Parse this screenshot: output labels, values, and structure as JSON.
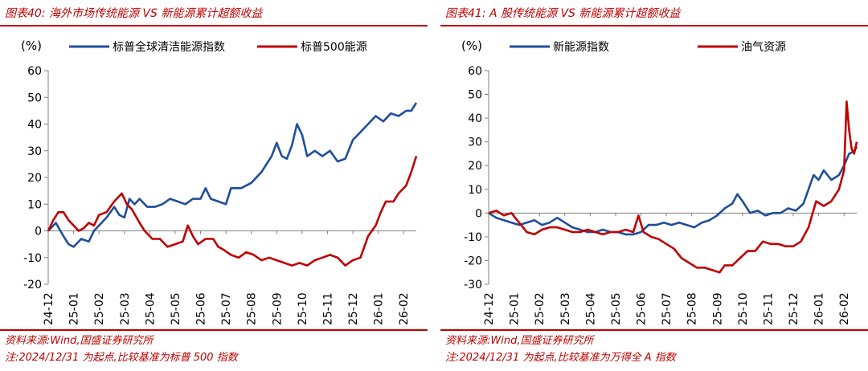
{
  "panels": [
    {
      "title": "图表40:  海外市场传统能源 VS 新能源累计超额收益",
      "source": "资料来源:Wind,国盛证券研究所",
      "note": "注:2024/12/31 为起点,比较基准为标普 500 指数"
    },
    {
      "title": "图表41:  A 股传统能源 VS 新能源累计超额收益",
      "source": "资料来源:Wind,国盛证券研究所",
      "note": "注:2024/12/31 为起点,比较基准为万得全 A 指数"
    }
  ],
  "chart_data": [
    {
      "type": "line",
      "ylabel": "(%)",
      "ylim": [
        -20,
        60
      ],
      "yticks": [
        -20,
        -10,
        0,
        10,
        20,
        30,
        40,
        50,
        60
      ],
      "categories": [
        "24-12",
        "25-01",
        "25-02",
        "25-03",
        "25-04",
        "25-05",
        "25-06",
        "25-07",
        "25-08",
        "25-09",
        "25-10",
        "25-11",
        "25-12",
        "26-01",
        "26-02"
      ],
      "x_end": 14.5,
      "legend": "top",
      "series": [
        {
          "name": "标普全球清洁能源指数",
          "color": "#1f4e9c",
          "points": [
            [
              0,
              0
            ],
            [
              0.3,
              3
            ],
            [
              0.6,
              -2
            ],
            [
              0.8,
              -5
            ],
            [
              1,
              -6
            ],
            [
              1.3,
              -3
            ],
            [
              1.6,
              -4
            ],
            [
              1.8,
              0
            ],
            [
              2,
              2
            ],
            [
              2.3,
              5
            ],
            [
              2.6,
              9
            ],
            [
              2.8,
              6
            ],
            [
              3,
              5
            ],
            [
              3.2,
              12
            ],
            [
              3.4,
              10
            ],
            [
              3.6,
              12
            ],
            [
              3.9,
              9
            ],
            [
              4.2,
              9
            ],
            [
              4.5,
              10
            ],
            [
              4.8,
              12
            ],
            [
              5.1,
              11
            ],
            [
              5.4,
              10
            ],
            [
              5.7,
              12
            ],
            [
              6,
              12
            ],
            [
              6.2,
              16
            ],
            [
              6.4,
              12
            ],
            [
              6.7,
              11
            ],
            [
              7,
              10
            ],
            [
              7.2,
              16
            ],
            [
              7.6,
              16
            ],
            [
              8,
              18
            ],
            [
              8.4,
              22
            ],
            [
              8.8,
              28
            ],
            [
              9,
              33
            ],
            [
              9.2,
              28
            ],
            [
              9.4,
              27
            ],
            [
              9.6,
              32
            ],
            [
              9.8,
              40
            ],
            [
              10,
              36
            ],
            [
              10.2,
              28
            ],
            [
              10.5,
              30
            ],
            [
              10.8,
              28
            ],
            [
              11.1,
              30
            ],
            [
              11.4,
              26
            ],
            [
              11.7,
              27
            ],
            [
              12,
              34
            ],
            [
              12.3,
              37
            ],
            [
              12.6,
              40
            ],
            [
              12.9,
              43
            ],
            [
              13.2,
              41
            ],
            [
              13.5,
              44
            ],
            [
              13.8,
              43
            ],
            [
              14.1,
              45
            ],
            [
              14.3,
              45
            ],
            [
              14.5,
              48
            ]
          ]
        },
        {
          "name": "标普500能源",
          "color": "#c00000",
          "points": [
            [
              0,
              0
            ],
            [
              0.2,
              4
            ],
            [
              0.4,
              7
            ],
            [
              0.6,
              7
            ],
            [
              0.8,
              4
            ],
            [
              1,
              2
            ],
            [
              1.2,
              0
            ],
            [
              1.4,
              1
            ],
            [
              1.6,
              3
            ],
            [
              1.8,
              2
            ],
            [
              2,
              6
            ],
            [
              2.3,
              7
            ],
            [
              2.6,
              11
            ],
            [
              2.9,
              14
            ],
            [
              3.1,
              10
            ],
            [
              3.3,
              8
            ],
            [
              3.6,
              3
            ],
            [
              3.8,
              0
            ],
            [
              4.1,
              -3
            ],
            [
              4.4,
              -3
            ],
            [
              4.7,
              -6
            ],
            [
              5,
              -5
            ],
            [
              5.3,
              -4
            ],
            [
              5.5,
              2
            ],
            [
              5.7,
              -2
            ],
            [
              5.9,
              -5
            ],
            [
              6.2,
              -3
            ],
            [
              6.5,
              -3
            ],
            [
              6.7,
              -6
            ],
            [
              6.9,
              -7
            ],
            [
              7.2,
              -9
            ],
            [
              7.5,
              -10
            ],
            [
              7.8,
              -8
            ],
            [
              8.1,
              -9
            ],
            [
              8.4,
              -11
            ],
            [
              8.7,
              -10
            ],
            [
              9,
              -11
            ],
            [
              9.3,
              -12
            ],
            [
              9.6,
              -13
            ],
            [
              9.9,
              -12
            ],
            [
              10.2,
              -13
            ],
            [
              10.5,
              -11
            ],
            [
              10.8,
              -10
            ],
            [
              11.1,
              -9
            ],
            [
              11.4,
              -10
            ],
            [
              11.7,
              -13
            ],
            [
              12,
              -11
            ],
            [
              12.3,
              -10
            ],
            [
              12.6,
              -2
            ],
            [
              12.9,
              2
            ],
            [
              13.1,
              7
            ],
            [
              13.3,
              11
            ],
            [
              13.6,
              11
            ],
            [
              13.8,
              14
            ],
            [
              14.1,
              17
            ],
            [
              14.3,
              22
            ],
            [
              14.5,
              28
            ]
          ]
        }
      ]
    },
    {
      "type": "line",
      "ylabel": "(%)",
      "ylim": [
        -30,
        60
      ],
      "yticks": [
        -30,
        -20,
        -10,
        0,
        10,
        20,
        30,
        40,
        50,
        60
      ],
      "categories": [
        "24-12",
        "25-01",
        "25-02",
        "25-03",
        "25-04",
        "25-05",
        "25-06",
        "25-07",
        "25-08",
        "25-09",
        "25-10",
        "25-11",
        "25-12",
        "26-01",
        "26-02"
      ],
      "x_end": 14.5,
      "legend": "top",
      "series": [
        {
          "name": "新能源指数",
          "color": "#1f4e9c",
          "points": [
            [
              0,
              0
            ],
            [
              0.3,
              -2
            ],
            [
              0.6,
              -3
            ],
            [
              0.9,
              -4
            ],
            [
              1.2,
              -5
            ],
            [
              1.5,
              -4
            ],
            [
              1.8,
              -3
            ],
            [
              2.1,
              -5
            ],
            [
              2.4,
              -4
            ],
            [
              2.7,
              -2
            ],
            [
              3,
              -4
            ],
            [
              3.3,
              -6
            ],
            [
              3.6,
              -7
            ],
            [
              3.9,
              -8
            ],
            [
              4.2,
              -8
            ],
            [
              4.5,
              -7
            ],
            [
              4.8,
              -8
            ],
            [
              5.1,
              -8
            ],
            [
              5.4,
              -9
            ],
            [
              5.7,
              -9
            ],
            [
              6,
              -8
            ],
            [
              6.3,
              -5
            ],
            [
              6.6,
              -5
            ],
            [
              6.9,
              -4
            ],
            [
              7.2,
              -5
            ],
            [
              7.5,
              -4
            ],
            [
              7.8,
              -5
            ],
            [
              8.1,
              -6
            ],
            [
              8.4,
              -4
            ],
            [
              8.7,
              -3
            ],
            [
              9,
              -1
            ],
            [
              9.3,
              2
            ],
            [
              9.6,
              4
            ],
            [
              9.8,
              8
            ],
            [
              10,
              5
            ],
            [
              10.3,
              0
            ],
            [
              10.6,
              1
            ],
            [
              10.9,
              -1
            ],
            [
              11.2,
              0
            ],
            [
              11.5,
              0
            ],
            [
              11.8,
              2
            ],
            [
              12.1,
              1
            ],
            [
              12.4,
              4
            ],
            [
              12.6,
              10
            ],
            [
              12.8,
              16
            ],
            [
              13,
              14
            ],
            [
              13.2,
              18
            ],
            [
              13.5,
              14
            ],
            [
              13.8,
              16
            ],
            [
              14,
              20
            ],
            [
              14.2,
              25
            ],
            [
              14.4,
              26
            ],
            [
              14.5,
              28
            ]
          ]
        },
        {
          "name": "油气资源",
          "color": "#c00000",
          "points": [
            [
              0,
              0
            ],
            [
              0.3,
              1
            ],
            [
              0.6,
              -1
            ],
            [
              0.9,
              0
            ],
            [
              1.2,
              -4
            ],
            [
              1.5,
              -8
            ],
            [
              1.8,
              -9
            ],
            [
              2.1,
              -7
            ],
            [
              2.4,
              -6
            ],
            [
              2.7,
              -6
            ],
            [
              3,
              -7
            ],
            [
              3.3,
              -8
            ],
            [
              3.6,
              -8
            ],
            [
              3.9,
              -7
            ],
            [
              4.2,
              -8
            ],
            [
              4.5,
              -9
            ],
            [
              4.8,
              -8
            ],
            [
              5.1,
              -8
            ],
            [
              5.4,
              -7
            ],
            [
              5.7,
              -8
            ],
            [
              5.9,
              -1
            ],
            [
              6.1,
              -8
            ],
            [
              6.4,
              -10
            ],
            [
              6.7,
              -11
            ],
            [
              7,
              -13
            ],
            [
              7.3,
              -15
            ],
            [
              7.6,
              -19
            ],
            [
              7.9,
              -21
            ],
            [
              8.2,
              -23
            ],
            [
              8.5,
              -23
            ],
            [
              8.8,
              -24
            ],
            [
              9.1,
              -25
            ],
            [
              9.3,
              -22
            ],
            [
              9.6,
              -22
            ],
            [
              9.9,
              -19
            ],
            [
              10.2,
              -16
            ],
            [
              10.5,
              -16
            ],
            [
              10.8,
              -12
            ],
            [
              11.1,
              -13
            ],
            [
              11.4,
              -13
            ],
            [
              11.7,
              -14
            ],
            [
              12,
              -14
            ],
            [
              12.3,
              -12
            ],
            [
              12.6,
              -6
            ],
            [
              12.9,
              5
            ],
            [
              13.2,
              3
            ],
            [
              13.5,
              5
            ],
            [
              13.8,
              10
            ],
            [
              14,
              18
            ],
            [
              14.1,
              47
            ],
            [
              14.2,
              35
            ],
            [
              14.3,
              27
            ],
            [
              14.4,
              25
            ],
            [
              14.5,
              30
            ]
          ]
        }
      ]
    }
  ]
}
